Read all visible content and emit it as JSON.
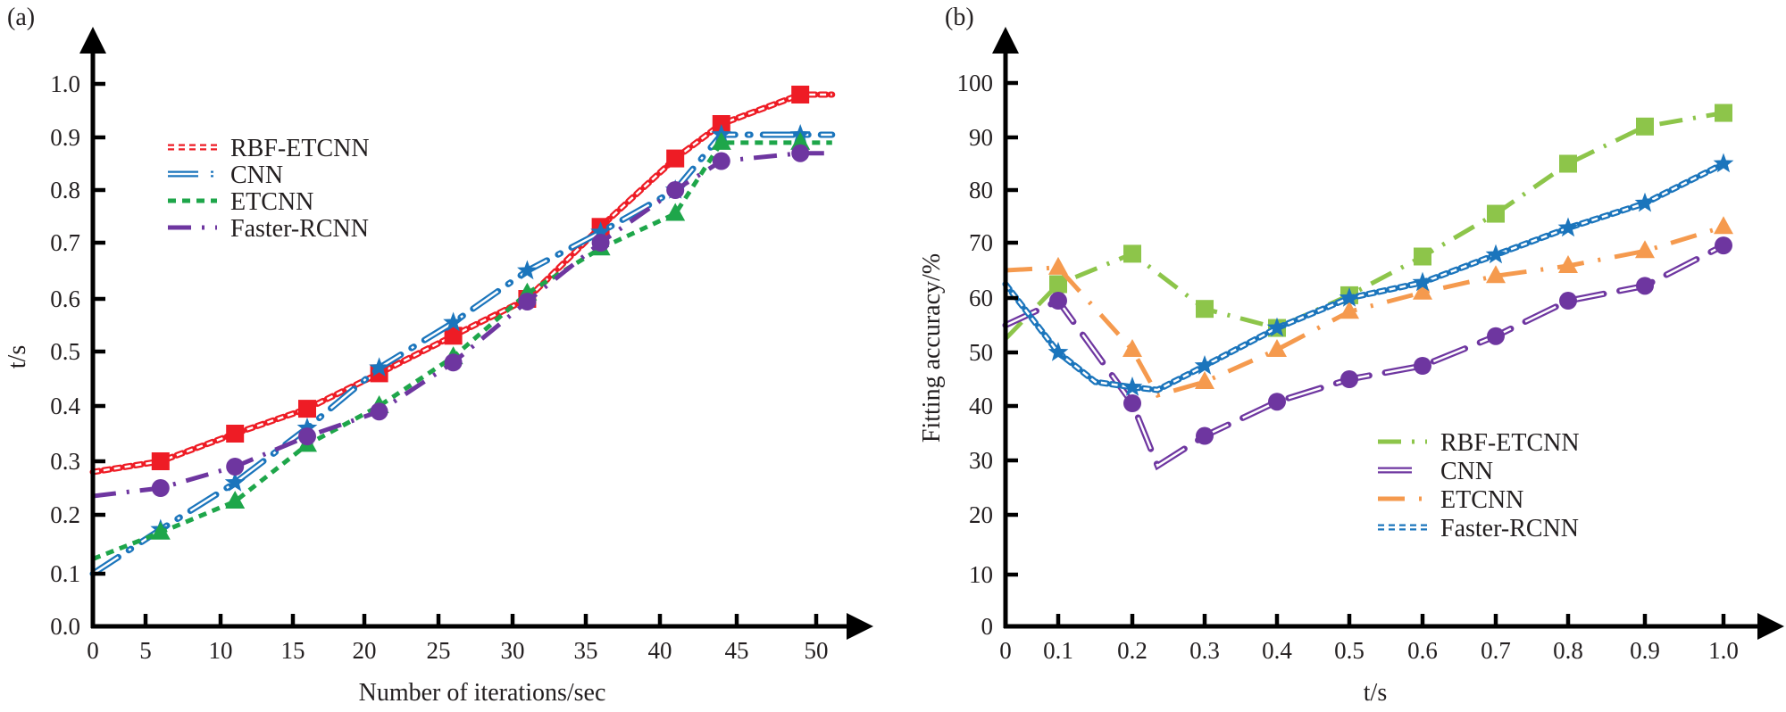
{
  "chart_data": [
    {
      "panel_label": "(a)",
      "type": "line",
      "title": "",
      "xlabel": "Number of iterations/sec",
      "ylabel": "t/s",
      "xlim": [
        0,
        50
      ],
      "ylim": [
        0.0,
        1.0
      ],
      "x_ticks": [
        "0",
        "5",
        "10",
        "15",
        "20",
        "25",
        "30",
        "35",
        "40",
        "45",
        "50"
      ],
      "y_ticks": [
        "0.0",
        "0.1",
        "0.2",
        "0.3",
        "0.4",
        "0.5",
        "0.6",
        "0.7",
        "0.8",
        "0.9",
        "1.0"
      ],
      "grid": false,
      "legend_position": "upper-left",
      "series": [
        {
          "name": "RBF-ETCNN",
          "color": "#ee1c25",
          "line_style": "dotted",
          "marker": "square",
          "x": [
            0,
            6,
            11,
            16,
            21,
            26,
            31,
            36,
            41,
            44,
            49,
            51
          ],
          "y": [
            0.28,
            0.3,
            0.35,
            0.395,
            0.46,
            0.53,
            0.6,
            0.73,
            0.86,
            0.925,
            0.98,
            0.98
          ],
          "marker_indices": [
            1,
            2,
            3,
            4,
            5,
            6,
            7,
            8,
            9,
            10
          ]
        },
        {
          "name": "CNN",
          "color": "#1b75bc",
          "line_style": "double-dash-dot",
          "marker": "star",
          "x": [
            0,
            6,
            11,
            16,
            21,
            26,
            31,
            36,
            41,
            44,
            49,
            51
          ],
          "y": [
            0.1,
            0.175,
            0.26,
            0.36,
            0.47,
            0.555,
            0.65,
            0.72,
            0.8,
            0.905,
            0.905,
            0.905
          ],
          "marker_indices": [
            1,
            2,
            3,
            4,
            5,
            6,
            7,
            8,
            9,
            10
          ]
        },
        {
          "name": "ETCNN",
          "color": "#1ea64a",
          "line_style": "dashed",
          "marker": "triangle",
          "x": [
            0,
            6,
            11,
            16,
            21,
            26,
            31,
            36,
            41,
            44,
            49,
            51
          ],
          "y": [
            0.125,
            0.17,
            0.225,
            0.33,
            0.4,
            0.49,
            0.61,
            0.69,
            0.755,
            0.89,
            0.89,
            0.89
          ],
          "marker_indices": [
            1,
            2,
            3,
            4,
            5,
            6,
            7,
            8,
            9,
            10
          ]
        },
        {
          "name": "Faster-RCNN",
          "color": "#6e36a0",
          "line_style": "dash-dot",
          "marker": "circle",
          "x": [
            0,
            6,
            11,
            16,
            21,
            26,
            31,
            36,
            41,
            44,
            49,
            51
          ],
          "y": [
            0.235,
            0.25,
            0.29,
            0.345,
            0.39,
            0.48,
            0.595,
            0.7,
            0.8,
            0.855,
            0.87,
            0.87
          ],
          "marker_indices": [
            1,
            2,
            3,
            4,
            5,
            6,
            7,
            8,
            9,
            10
          ]
        }
      ]
    },
    {
      "panel_label": "(b)",
      "type": "line",
      "title": "",
      "xlabel": "t/s",
      "ylabel": "Fitting accuracy/%",
      "xlim": [
        0,
        1.0
      ],
      "ylim": [
        0,
        100
      ],
      "x_ticks": [
        "0",
        "0.1",
        "0.2",
        "0.3",
        "0.4",
        "0.5",
        "0.6",
        "0.7",
        "0.8",
        "0.9",
        "1.0"
      ],
      "y_ticks": [
        "0",
        "10",
        "20",
        "30",
        "40",
        "50",
        "60",
        "70",
        "80",
        "90",
        "100"
      ],
      "grid": false,
      "legend_position": "lower-right",
      "series": [
        {
          "name": "RBF-ETCNN",
          "color": "#8dc54a",
          "line_style": "dash-dot",
          "marker": "square",
          "x": [
            0,
            0.1,
            0.2,
            0.3,
            0.4,
            0.5,
            0.6,
            0.7,
            0.8,
            0.9,
            1.0
          ],
          "y": [
            52.5,
            62.5,
            68,
            58,
            54.5,
            60.5,
            67.5,
            75.5,
            85,
            92,
            94.5
          ],
          "marker_indices": [
            1,
            2,
            3,
            4,
            5,
            6,
            7,
            8,
            9,
            10
          ]
        },
        {
          "name": "CNN",
          "color": "#6e36a0",
          "line_style": "double-dash",
          "marker": "circle",
          "x": [
            0,
            0.1,
            0.2,
            0.235,
            0.3,
            0.4,
            0.5,
            0.6,
            0.7,
            0.8,
            0.9,
            1.0
          ],
          "y": [
            55,
            59.5,
            40.5,
            29,
            34.5,
            40.8,
            45,
            47.5,
            53,
            59.5,
            62.2,
            69.5
          ],
          "marker_indices": [
            1,
            2,
            4,
            5,
            6,
            7,
            8,
            9,
            10,
            11
          ]
        },
        {
          "name": "ETCNN",
          "color": "#f59a4e",
          "line_style": "long-dash",
          "marker": "triangle",
          "x": [
            0,
            0.1,
            0.2,
            0.235,
            0.3,
            0.4,
            0.5,
            0.6,
            0.7,
            0.8,
            0.9,
            1.0
          ],
          "y": [
            65,
            65.5,
            50.5,
            42,
            44.5,
            50.5,
            57.5,
            61,
            64,
            65.8,
            68.5,
            73
          ],
          "marker_indices": [
            1,
            2,
            4,
            5,
            6,
            7,
            8,
            9,
            10,
            11
          ]
        },
        {
          "name": "Faster-RCNN",
          "color": "#1b75bc",
          "line_style": "dotted",
          "marker": "star",
          "x": [
            0,
            0.1,
            0.15,
            0.2,
            0.235,
            0.3,
            0.4,
            0.5,
            0.6,
            0.7,
            0.8,
            0.9,
            1.0
          ],
          "y": [
            62.5,
            50,
            44.5,
            43.5,
            43,
            47.5,
            54.5,
            60,
            62.8,
            67.8,
            72.8,
            77.5,
            85
          ],
          "marker_indices": [
            1,
            3,
            5,
            6,
            7,
            8,
            9,
            10,
            11,
            12
          ]
        }
      ]
    }
  ]
}
